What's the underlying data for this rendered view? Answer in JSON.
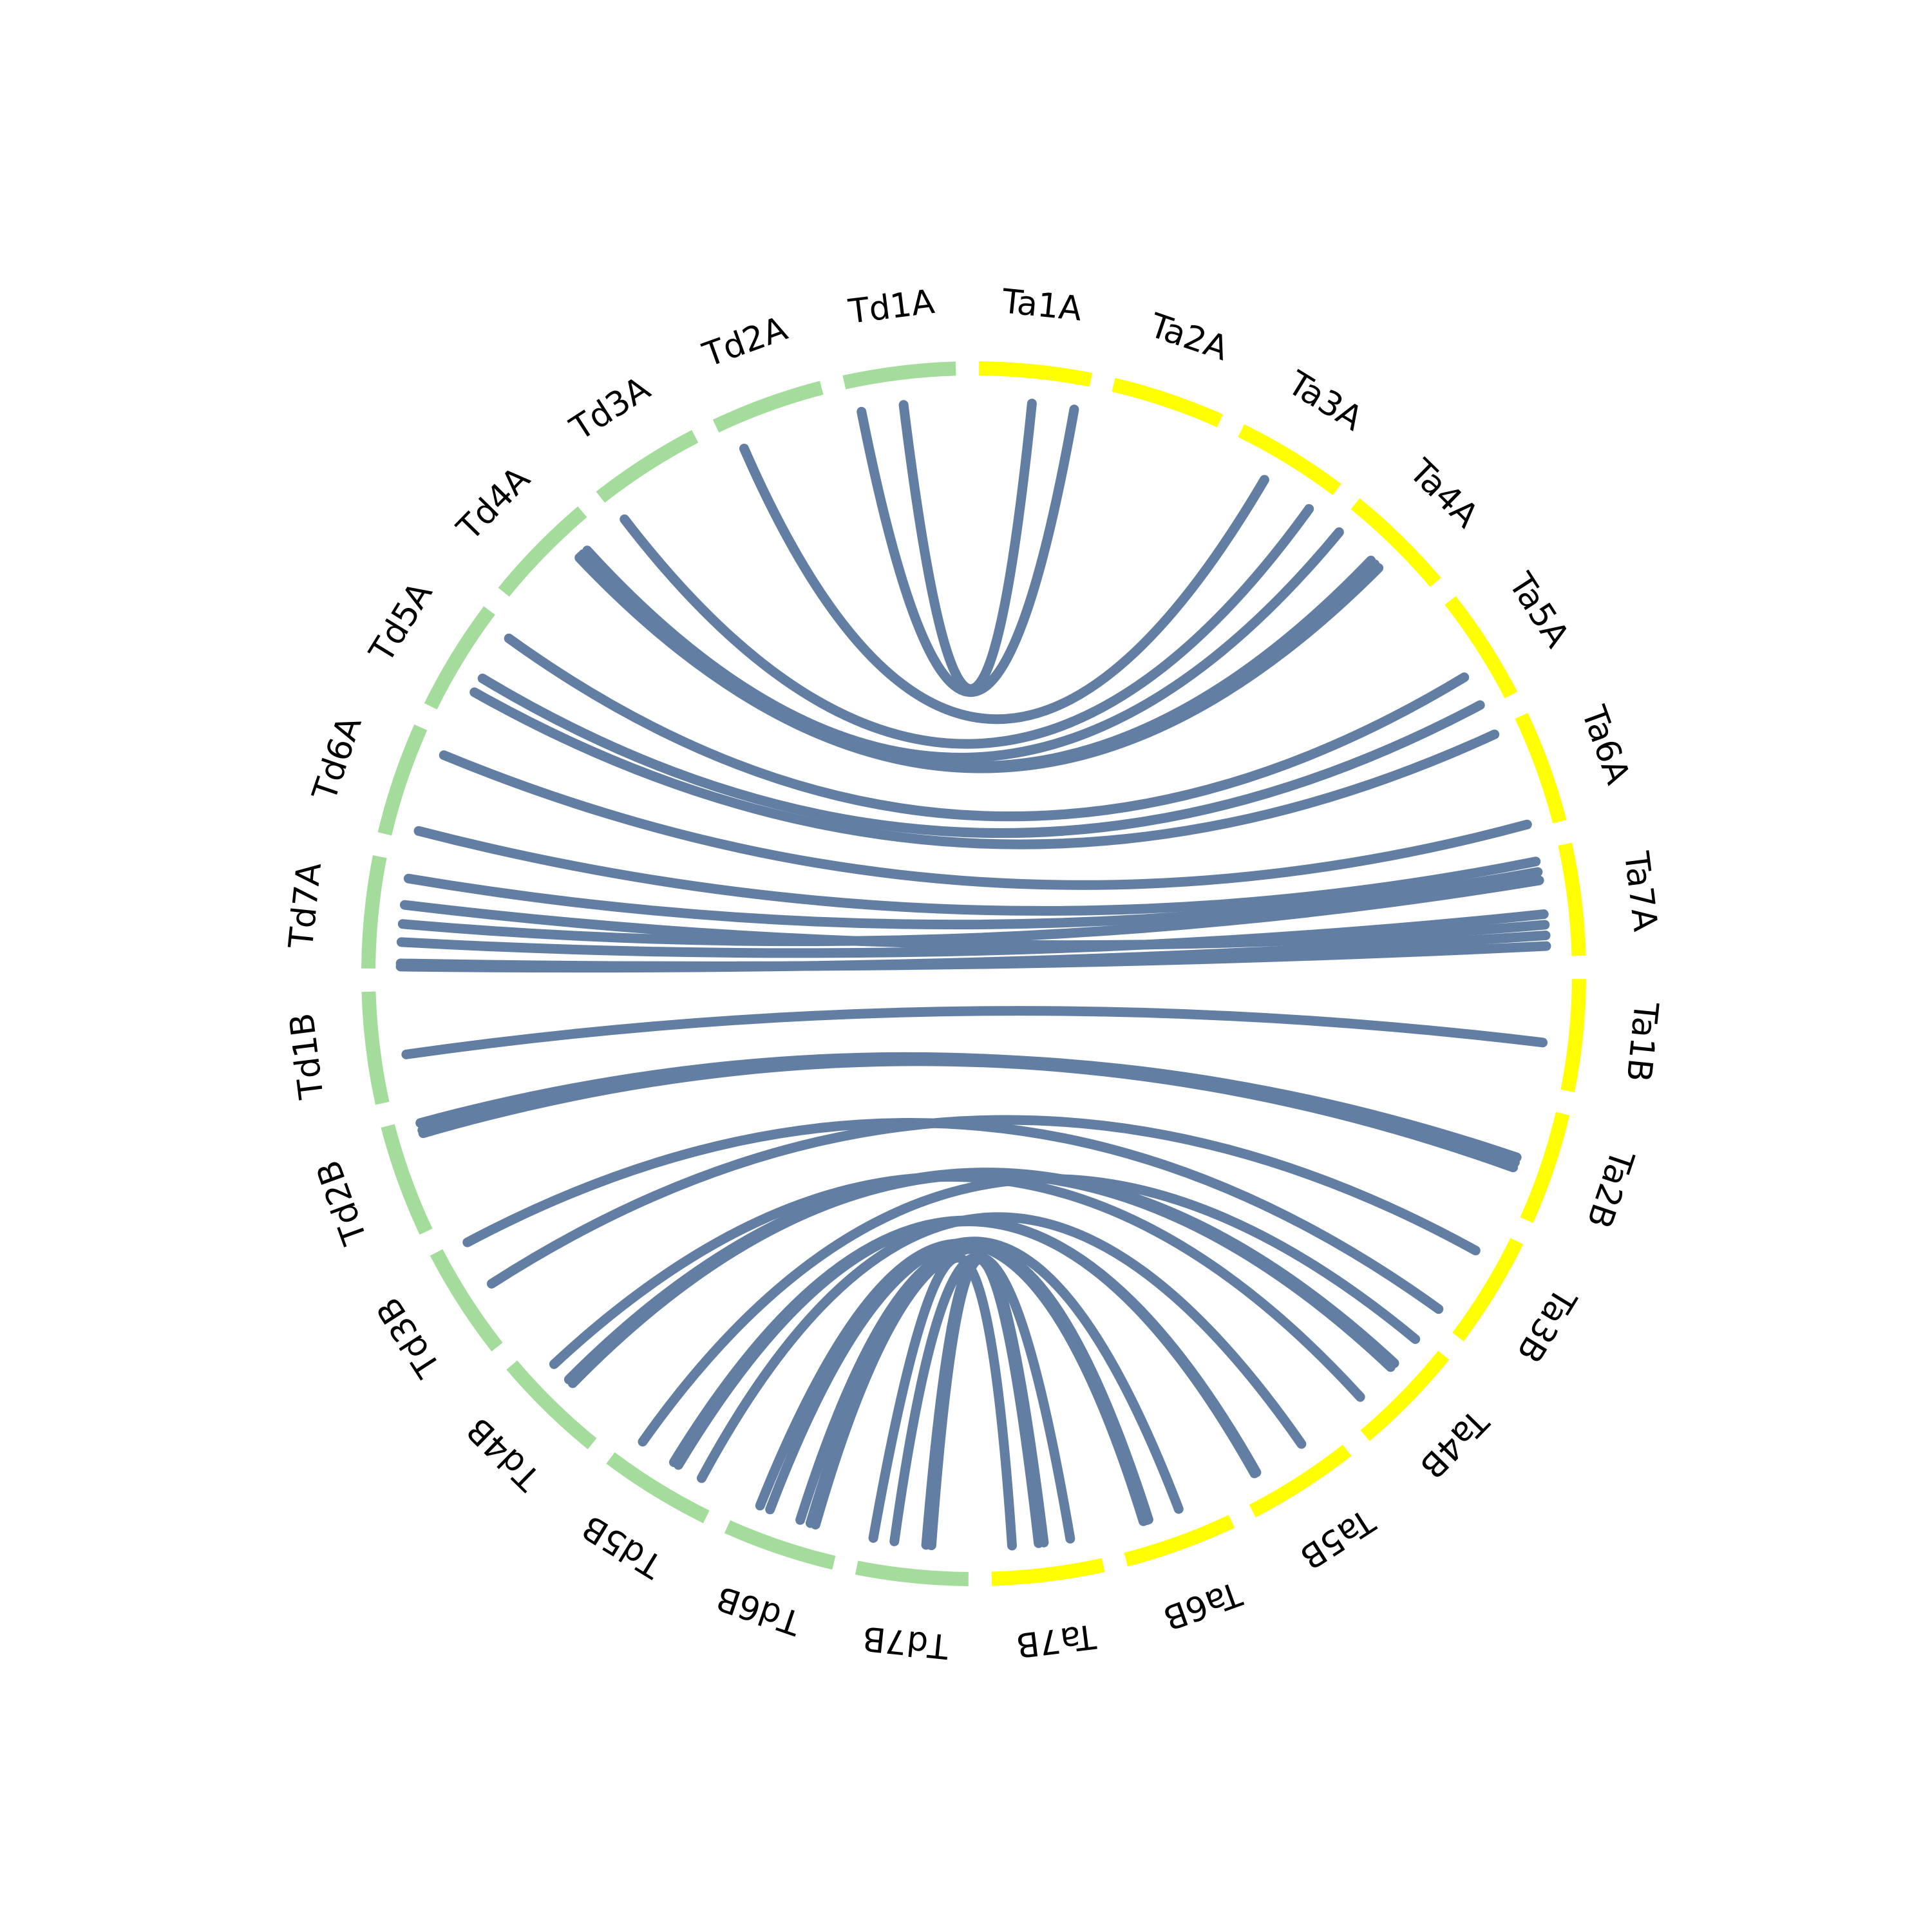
{
  "diagram": {
    "type": "circos",
    "colors": {
      "td_band": "#a3dc9b",
      "ta_band": "#ffff00",
      "link": "#637ea3",
      "label": "#000000",
      "background": "#ffffff"
    },
    "chromosomes": [
      {
        "id": "Ta1A",
        "label": "Ta1A",
        "group": "Ta"
      },
      {
        "id": "Ta2A",
        "label": "Ta2A",
        "group": "Ta"
      },
      {
        "id": "Ta3A",
        "label": "Ta3A",
        "group": "Ta"
      },
      {
        "id": "Ta4A",
        "label": "Ta4A",
        "group": "Ta"
      },
      {
        "id": "Ta5A",
        "label": "Ta5A",
        "group": "Ta"
      },
      {
        "id": "Ta6A",
        "label": "Ta6A",
        "group": "Ta"
      },
      {
        "id": "Ta7A",
        "label": "Ta7A",
        "group": "Ta"
      },
      {
        "id": "Ta1B",
        "label": "Ta1B",
        "group": "Ta"
      },
      {
        "id": "Ta2B",
        "label": "Ta2B",
        "group": "Ta"
      },
      {
        "id": "Ta3B",
        "label": "Ta3B",
        "group": "Ta"
      },
      {
        "id": "Ta4B",
        "label": "Ta4B",
        "group": "Ta"
      },
      {
        "id": "Ta5B",
        "label": "Ta5B",
        "group": "Ta"
      },
      {
        "id": "Ta6B",
        "label": "Ta6B",
        "group": "Ta"
      },
      {
        "id": "Ta7B",
        "label": "Ta7B",
        "group": "Ta"
      },
      {
        "id": "Td7B",
        "label": "Td7B",
        "group": "Td"
      },
      {
        "id": "Td6B",
        "label": "Td6B",
        "group": "Td"
      },
      {
        "id": "Td5B",
        "label": "Td5B",
        "group": "Td"
      },
      {
        "id": "Td4B",
        "label": "Td4B",
        "group": "Td"
      },
      {
        "id": "Td3B",
        "label": "Td3B",
        "group": "Td"
      },
      {
        "id": "Td2B",
        "label": "Td2B",
        "group": "Td"
      },
      {
        "id": "Td1B",
        "label": "Td1B",
        "group": "Td"
      },
      {
        "id": "Td7A",
        "label": "Td7A",
        "group": "Td"
      },
      {
        "id": "Td6A",
        "label": "Td6A",
        "group": "Td"
      },
      {
        "id": "Td5A",
        "label": "Td5A",
        "group": "Td"
      },
      {
        "id": "Td4A",
        "label": "Td4A",
        "group": "Td"
      },
      {
        "id": "Td3A",
        "label": "Td3A",
        "group": "Td"
      },
      {
        "id": "Td2A",
        "label": "Td2A",
        "group": "Td"
      },
      {
        "id": "Td1A",
        "label": "Td1A",
        "group": "Td"
      }
    ],
    "links": [
      [
        "Td1A",
        0.5,
        "Ta1A",
        0.5
      ],
      [
        "Td1A",
        0.1,
        "Ta1A",
        0.9
      ],
      [
        "Td2A",
        0.15,
        "Ta3A",
        0.4
      ],
      [
        "Td3A",
        0.05,
        "Ta3A",
        0.9
      ],
      [
        "Td4A",
        0.8,
        "Ta4A",
        0.05
      ],
      [
        "Td4A",
        0.75,
        "Ta4A",
        0.5
      ],
      [
        "Td4A",
        0.7,
        "Ta4A",
        0.55
      ],
      [
        "Td4A",
        0.72,
        "Ta4A",
        0.45
      ],
      [
        "Td5A",
        0.9,
        "Ta5A",
        0.65
      ],
      [
        "Td5A",
        0.45,
        "Ta5A",
        0.95
      ],
      [
        "Td5A",
        0.3,
        "Ta6A",
        0.05
      ],
      [
        "Td6A",
        0.85,
        "Ta6A",
        0.95
      ],
      [
        "Td6A",
        0.1,
        "Ta7A",
        0.1
      ],
      [
        "Td7A",
        0.85,
        "Ta7A",
        0.2
      ],
      [
        "Td7A",
        0.6,
        "Ta7A",
        0.7
      ],
      [
        "Td7A",
        0.42,
        "Ta7A",
        0.28
      ],
      [
        "Td7A",
        0.25,
        "Ta7A",
        0.6
      ],
      [
        "Td7A",
        0.05,
        "Ta7A",
        0.9
      ],
      [
        "Td7A",
        0.02,
        "Ta7A",
        0.8
      ],
      [
        "Td1B",
        0.4,
        "Ta1B",
        0.6
      ],
      [
        "Td2B",
        0.95,
        "Ta2B",
        0.55
      ],
      [
        "Td2B",
        0.85,
        "Ta2B",
        0.6
      ],
      [
        "Td2B",
        0.88,
        "Ta2B",
        0.5
      ],
      [
        "Td3B",
        0.95,
        "Ta3B",
        0.9
      ],
      [
        "Td3B",
        0.5,
        "Ta3B",
        0.25
      ],
      [
        "Td4B",
        0.75,
        "Ta4B",
        0.8
      ],
      [
        "Td4B",
        0.55,
        "Ta4B",
        0.35
      ],
      [
        "Td4B",
        0.5,
        "Ta4B",
        0.4
      ],
      [
        "Td5B",
        0.85,
        "Ta4B",
        0.05
      ],
      [
        "Td5B",
        0.5,
        "Ta5B",
        0.8
      ],
      [
        "Td5B",
        0.45,
        "Ta5B",
        0.82
      ],
      [
        "Td5B",
        0.2,
        "Ta5B",
        0.3
      ],
      [
        "Td6B",
        0.8,
        "Ta6B",
        0.75
      ],
      [
        "Td6B",
        0.7,
        "Ta6B",
        0.4
      ],
      [
        "Td6B",
        0.4,
        "Ta6B",
        0.7
      ],
      [
        "Td6B",
        0.3,
        "Ta6B",
        0.72
      ],
      [
        "Td6B",
        0.25,
        "Ta6B",
        0.75
      ],
      [
        "Td7B",
        0.9,
        "Ta7B",
        0.8
      ],
      [
        "Td7B",
        0.7,
        "Ta7B",
        0.25
      ],
      [
        "Td7B",
        0.4,
        "Ta7B",
        0.55
      ],
      [
        "Td7B",
        0.35,
        "Ta7B",
        0.5
      ]
    ]
  }
}
